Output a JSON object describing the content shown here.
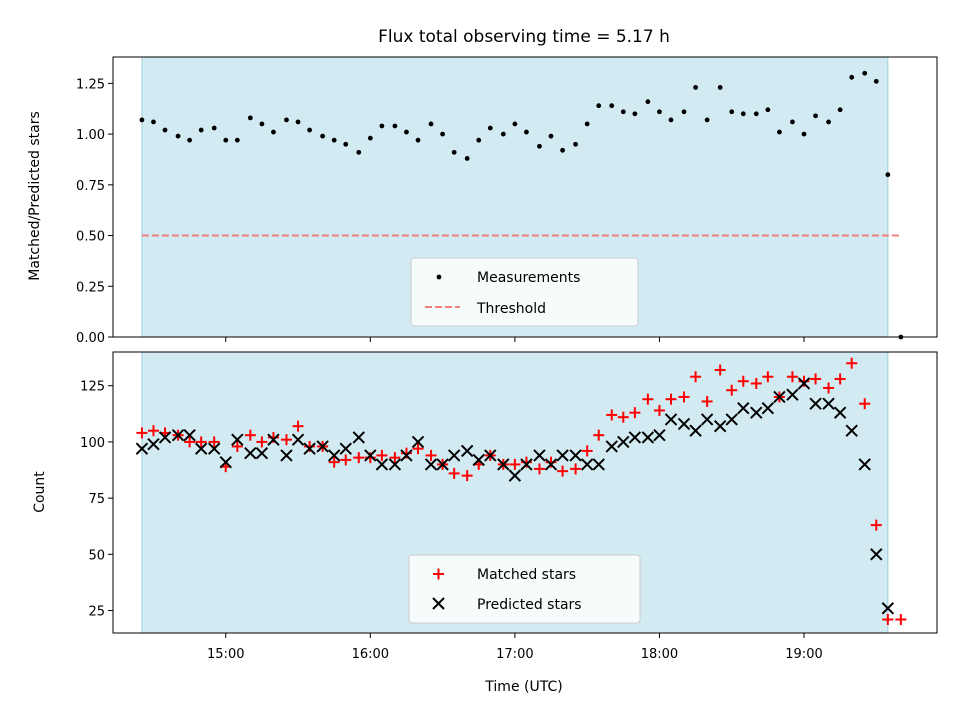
{
  "chart_data": [
    {
      "type": "scatter",
      "title": "Flux total observing time = 5.17 h",
      "xlabel": "",
      "ylabel": "Matched/Predicted stars",
      "ylim": [
        0,
        1.38
      ],
      "yticks": [
        0.0,
        0.25,
        0.5,
        0.75,
        1.0,
        1.25
      ],
      "ytick_labels": [
        "0.00",
        "0.25",
        "0.50",
        "0.75",
        "1.00",
        "1.25"
      ],
      "xlim": [
        14.22,
        19.92
      ],
      "xticks": [
        15,
        16,
        17,
        18,
        19
      ],
      "xtick_labels": [],
      "shaded_span": [
        14.42,
        19.58
      ],
      "grid": false,
      "legend_position": "lower-center",
      "colors": {
        "span": "#add8e6",
        "measurements": "#000000",
        "threshold": "#f08080"
      },
      "series": [
        {
          "name": "Measurements",
          "marker": "dot",
          "x": [
            14.42,
            14.5,
            14.58,
            14.67,
            14.75,
            14.83,
            14.92,
            15.0,
            15.08,
            15.17,
            15.25,
            15.33,
            15.42,
            15.5,
            15.58,
            15.67,
            15.75,
            15.83,
            15.92,
            16.0,
            16.08,
            16.17,
            16.25,
            16.33,
            16.42,
            16.5,
            16.58,
            16.67,
            16.75,
            16.83,
            16.92,
            17.0,
            17.08,
            17.17,
            17.25,
            17.33,
            17.42,
            17.5,
            17.58,
            17.67,
            17.75,
            17.83,
            17.92,
            18.0,
            18.08,
            18.17,
            18.25,
            18.33,
            18.42,
            18.5,
            18.58,
            18.67,
            18.75,
            18.83,
            18.92,
            19.0,
            19.08,
            19.17,
            19.25,
            19.33,
            19.42,
            19.5,
            19.58,
            19.67
          ],
          "y": [
            1.07,
            1.06,
            1.02,
            0.99,
            0.97,
            1.02,
            1.03,
            0.97,
            0.97,
            1.08,
            1.05,
            1.01,
            1.07,
            1.06,
            1.02,
            0.99,
            0.97,
            0.95,
            0.91,
            0.98,
            1.04,
            1.04,
            1.01,
            0.97,
            1.05,
            1.0,
            0.91,
            0.88,
            0.97,
            1.03,
            1.0,
            1.05,
            1.01,
            0.94,
            0.99,
            0.92,
            0.95,
            1.05,
            1.14,
            1.14,
            1.11,
            1.1,
            1.16,
            1.11,
            1.07,
            1.11,
            1.23,
            1.07,
            1.23,
            1.11,
            1.1,
            1.1,
            1.12,
            1.01,
            1.06,
            1.0,
            1.09,
            1.06,
            1.12,
            1.28,
            1.3,
            1.26,
            0.8,
            0.0
          ]
        },
        {
          "name": "Threshold",
          "type": "line",
          "style": "dashed",
          "x": [
            14.42,
            19.67
          ],
          "y": [
            0.5,
            0.5
          ]
        }
      ]
    },
    {
      "type": "scatter",
      "title": "",
      "xlabel": "Time (UTC)",
      "ylabel": "Count",
      "ylim": [
        15,
        140
      ],
      "yticks": [
        25,
        50,
        75,
        100,
        125
      ],
      "ytick_labels": [
        "25",
        "50",
        "75",
        "100",
        "125"
      ],
      "xlim": [
        14.22,
        19.92
      ],
      "xticks": [
        15,
        16,
        17,
        18,
        19
      ],
      "xtick_labels": [
        "15:00",
        "16:00",
        "17:00",
        "18:00",
        "19:00"
      ],
      "shaded_span": [
        14.42,
        19.58
      ],
      "grid": false,
      "legend_position": "lower-center",
      "colors": {
        "span": "#add8e6",
        "matched": "#ff0000",
        "predicted": "#000000"
      },
      "series": [
        {
          "name": "Matched stars",
          "marker": "plus",
          "x": [
            14.42,
            14.5,
            14.58,
            14.67,
            14.75,
            14.83,
            14.92,
            15.0,
            15.08,
            15.17,
            15.25,
            15.33,
            15.42,
            15.5,
            15.58,
            15.67,
            15.75,
            15.83,
            15.92,
            16.0,
            16.08,
            16.17,
            16.25,
            16.33,
            16.42,
            16.5,
            16.58,
            16.67,
            16.75,
            16.83,
            16.92,
            17.0,
            17.08,
            17.17,
            17.25,
            17.33,
            17.42,
            17.5,
            17.58,
            17.67,
            17.75,
            17.83,
            17.92,
            18.0,
            18.08,
            18.17,
            18.25,
            18.33,
            18.42,
            18.5,
            18.58,
            18.67,
            18.75,
            18.83,
            18.92,
            19.0,
            19.08,
            19.17,
            19.25,
            19.33,
            19.42,
            19.5,
            19.58,
            19.67
          ],
          "y": [
            104,
            105,
            104,
            103,
            100,
            100,
            100,
            89,
            98,
            103,
            100,
            102,
            101,
            107,
            98,
            98,
            91,
            92,
            93,
            93,
            94,
            93,
            95,
            97,
            94,
            90,
            86,
            85,
            90,
            94,
            90,
            90,
            91,
            88,
            91,
            87,
            88,
            96,
            103,
            112,
            111,
            113,
            119,
            114,
            119,
            120,
            129,
            118,
            132,
            123,
            127,
            126,
            129,
            120,
            129,
            127,
            128,
            124,
            128,
            135,
            117,
            63,
            21,
            21
          ]
        },
        {
          "name": "Predicted stars",
          "marker": "x",
          "x": [
            14.42,
            14.5,
            14.58,
            14.67,
            14.75,
            14.83,
            14.92,
            15.0,
            15.08,
            15.17,
            15.25,
            15.33,
            15.42,
            15.5,
            15.58,
            15.67,
            15.75,
            15.83,
            15.92,
            16.0,
            16.08,
            16.17,
            16.25,
            16.33,
            16.42,
            16.5,
            16.58,
            16.67,
            16.75,
            16.83,
            16.92,
            17.0,
            17.08,
            17.17,
            17.25,
            17.33,
            17.42,
            17.5,
            17.58,
            17.67,
            17.75,
            17.83,
            17.92,
            18.0,
            18.08,
            18.17,
            18.25,
            18.33,
            18.42,
            18.5,
            18.58,
            18.67,
            18.75,
            18.83,
            18.92,
            19.0,
            19.08,
            19.17,
            19.25,
            19.33,
            19.42,
            19.5,
            19.58
          ],
          "y": [
            97,
            99,
            102,
            103,
            103,
            97,
            97,
            91,
            101,
            95,
            95,
            101,
            94,
            101,
            97,
            98,
            94,
            97,
            102,
            94,
            90,
            90,
            94,
            100,
            90,
            90,
            94,
            96,
            92,
            94,
            90,
            85,
            90,
            94,
            90,
            94,
            94,
            90,
            90,
            98,
            100,
            102,
            102,
            103,
            110,
            108,
            105,
            110,
            107,
            110,
            115,
            113,
            115,
            120,
            121,
            126,
            117,
            117,
            113,
            105,
            90,
            50,
            26
          ]
        }
      ]
    }
  ]
}
